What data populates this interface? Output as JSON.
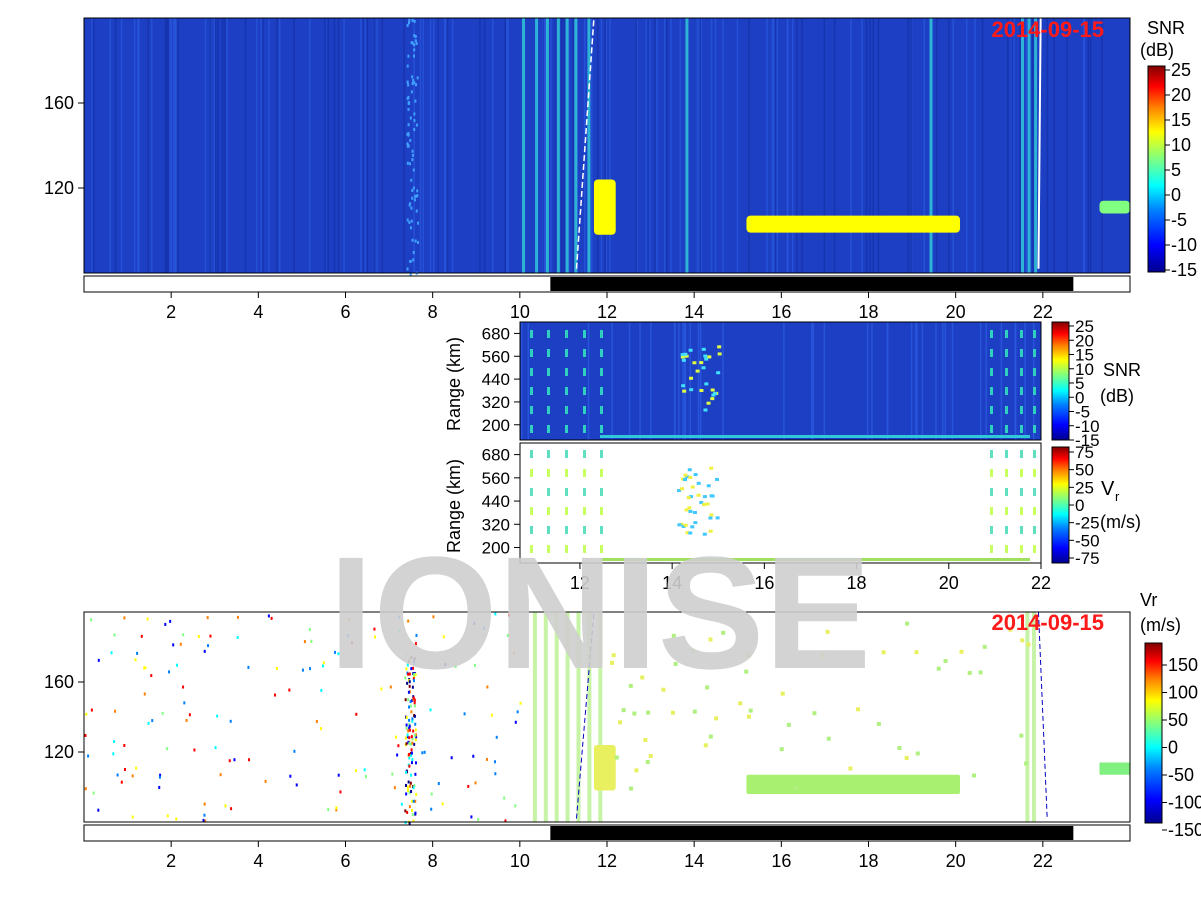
{
  "watermark": "IONISE",
  "colors": {
    "background_snr": "#1c3fc4",
    "watermark": "#cfcfcf",
    "date": "#ff1a1a",
    "night_bar": "#000000"
  },
  "colormap": [
    "#00008f",
    "#0000ff",
    "#0080ff",
    "#00ffff",
    "#80ff80",
    "#ffff00",
    "#ff8000",
    "#ff0000",
    "#800000"
  ],
  "chart_data": [
    {
      "name": "top-snr-panel",
      "type": "heatmap",
      "date_label": "2014-09-15",
      "x_ticks": [
        "2",
        "4",
        "6",
        "8",
        "10",
        "12",
        "14",
        "16",
        "18",
        "20",
        "22"
      ],
      "x_range": [
        0,
        24
      ],
      "y_ticks": [
        "120",
        "160"
      ],
      "y_range": [
        80,
        200
      ],
      "colorbar": {
        "label_line1": "SNR",
        "label_line2": "(dB)",
        "ticks": [
          "25",
          "20",
          "15",
          "10",
          "5",
          "0",
          "-5",
          "-10",
          "-15"
        ],
        "range": [
          -15,
          25
        ]
      },
      "night_interval": [
        10.7,
        22.7
      ],
      "features": [
        {
          "x0": 11.7,
          "x1": 12.2,
          "y0": 98,
          "y1": 124,
          "value": 12
        },
        {
          "x0": 15.2,
          "x1": 20.1,
          "y0": 99,
          "y1": 107,
          "value": 12
        },
        {
          "x0": 23.3,
          "x1": 24,
          "y0": 108,
          "y1": 114,
          "value": 5
        }
      ]
    },
    {
      "name": "inset-snr-panel",
      "type": "heatmap",
      "ylabel": "Range (km)",
      "y_ticks": [
        "200",
        "320",
        "440",
        "560",
        "680"
      ],
      "y_range": [
        120,
        740
      ],
      "x_range": [
        10.7,
        22
      ],
      "colorbar": {
        "label_line1": "SNR",
        "label_line2": "(dB)",
        "ticks": [
          "25",
          "20",
          "15",
          "10",
          "5",
          "0",
          "-5",
          "-10",
          "-15"
        ],
        "range": [
          -15,
          25
        ]
      }
    },
    {
      "name": "inset-vr-panel",
      "type": "heatmap",
      "ylabel": "Range (km)",
      "y_ticks": [
        "200",
        "320",
        "440",
        "560",
        "680"
      ],
      "y_range": [
        120,
        740
      ],
      "x_ticks": [
        "12",
        "14",
        "16",
        "18",
        "20",
        "22"
      ],
      "x_range": [
        10.7,
        22
      ],
      "colorbar": {
        "label_main": "V",
        "label_sub": "r",
        "label_unit": "(m/s)",
        "ticks": [
          "75",
          "50",
          "25",
          "0",
          "-25",
          "-50",
          "-75"
        ],
        "range": [
          -75,
          75
        ]
      }
    },
    {
      "name": "bottom-vr-panel",
      "type": "heatmap",
      "date_label": "2014-09-15",
      "x_ticks": [
        "2",
        "4",
        "6",
        "8",
        "10",
        "12",
        "14",
        "16",
        "18",
        "20",
        "22"
      ],
      "x_range": [
        0,
        24
      ],
      "y_ticks": [
        "120",
        "160"
      ],
      "y_range": [
        80,
        200
      ],
      "colorbar": {
        "label_line1": "Vr",
        "label_line2": "(m/s)",
        "ticks": [
          "150",
          "100",
          "50",
          "0",
          "-50",
          "-100",
          "-150"
        ],
        "range": [
          -175,
          175
        ]
      },
      "night_interval": [
        10.7,
        22.7
      ]
    }
  ]
}
